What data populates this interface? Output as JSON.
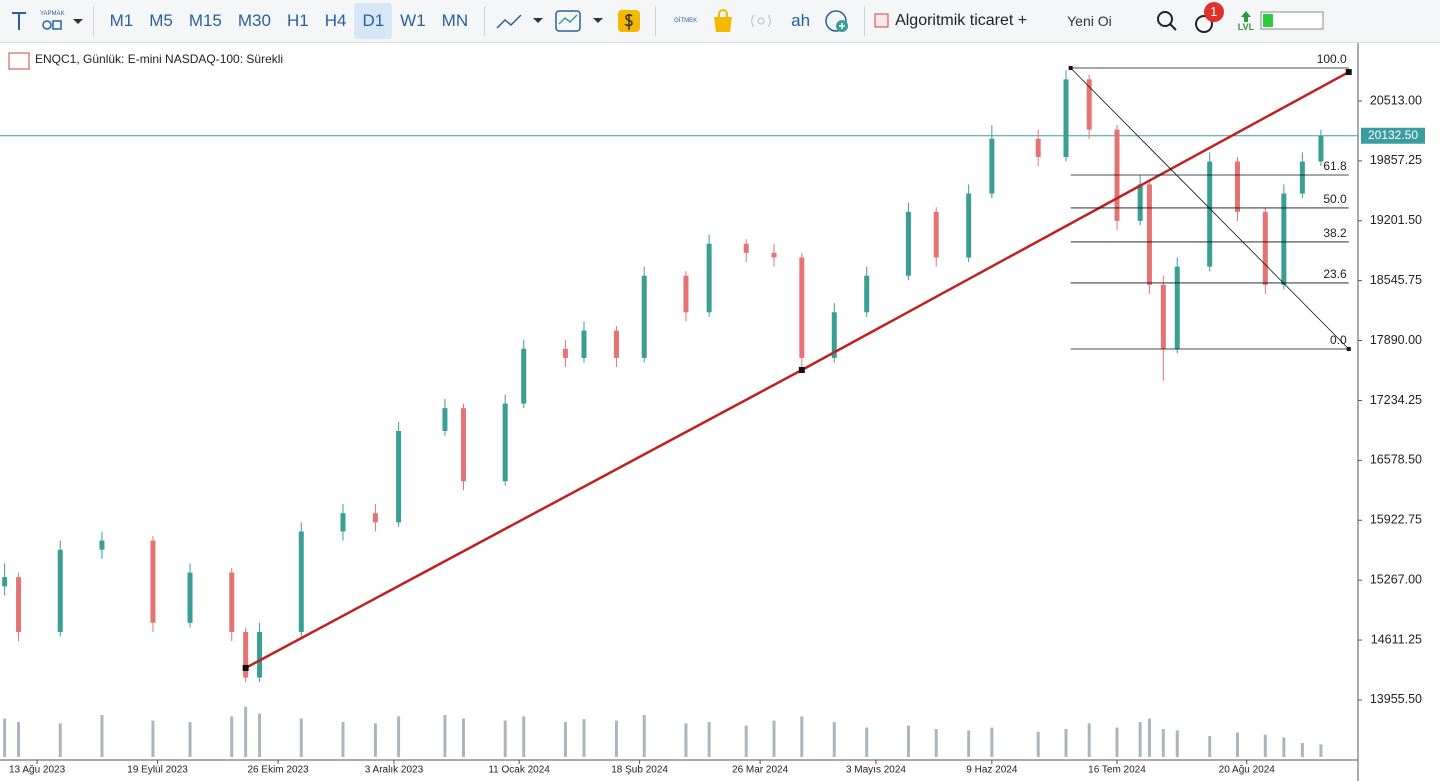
{
  "toolbar": {
    "draw_label": "YAPMAK",
    "timeframes": [
      "M1",
      "M5",
      "M15",
      "M30",
      "H1",
      "H4",
      "D1",
      "W1",
      "MN"
    ],
    "active_timeframe": "D1",
    "go_label": "GİTMEK",
    "ah": "ah",
    "algo_trading": "Algoritmik ticaret +",
    "new_order": "Yeni Oi",
    "badge": "1",
    "lvl": "LVL"
  },
  "chart_data": {
    "type": "candlestick",
    "title": "ENQC1, Günlük: E-mini NASDAQ-100: Sürekli",
    "up_color": "#3a9e94",
    "down_color": "#e57373",
    "ylim": [
      13298,
      21126
    ],
    "yticks": [
      {
        "value": 20513,
        "label": "20513.00"
      },
      {
        "value": 19857.25,
        "label": "19857.25"
      },
      {
        "value": 19201.5,
        "label": "19201.50"
      },
      {
        "value": 18545.75,
        "label": "18545.75"
      },
      {
        "value": 17890,
        "label": "17890.00"
      },
      {
        "value": 17234.25,
        "label": "17234.25"
      },
      {
        "value": 16578.5,
        "label": "16578.50"
      },
      {
        "value": 15922.75,
        "label": "15922.75"
      },
      {
        "value": 15267,
        "label": "15267.00"
      },
      {
        "value": 14611.25,
        "label": "14611.25"
      },
      {
        "value": 13955.5,
        "label": "13955.50"
      }
    ],
    "xlim": [
      -1,
      292
    ],
    "xticks": [
      {
        "value": 7,
        "label": "13 Ağu 2023"
      },
      {
        "value": 33,
        "label": "19 Eylül 2023"
      },
      {
        "value": 59,
        "label": "26 Ekim 2023"
      },
      {
        "value": 84,
        "label": "3 Aralık 2023"
      },
      {
        "value": 111,
        "label": "11 Ocak 2024"
      },
      {
        "value": 137,
        "label": "18 Şub 2024"
      },
      {
        "value": 163,
        "label": "26 Mar 2024"
      },
      {
        "value": 188,
        "label": "3 Mayıs 2024"
      },
      {
        "value": 213,
        "label": "9 Haz 2024"
      },
      {
        "value": 240,
        "label": "16 Tem 2024"
      },
      {
        "value": 268,
        "label": "20 Ağu 2024"
      }
    ],
    "x": [
      0,
      3,
      12,
      21,
      32,
      40,
      49,
      52,
      55,
      64,
      73,
      80,
      85,
      95,
      99,
      108,
      112,
      121,
      125,
      132,
      138,
      147,
      152,
      160,
      166,
      172,
      179,
      186,
      195,
      201,
      208,
      213,
      223,
      229,
      234,
      240,
      245,
      247,
      250,
      253,
      260,
      266,
      272,
      276,
      280,
      284
    ],
    "open": [
      15200,
      15300,
      14700,
      15600,
      15700,
      14800,
      15350,
      14700,
      14200,
      14700,
      15800,
      16000,
      15900,
      16900,
      17150,
      16350,
      17200,
      17800,
      17700,
      18000,
      17700,
      18600,
      18200,
      18950,
      18850,
      18800,
      17700,
      18200,
      18600,
      19300,
      18800,
      19500,
      20100,
      19900,
      20750,
      20200,
      19200,
      19600,
      18500,
      17800,
      18700,
      19850,
      19300,
      18500,
      19500,
      19850
    ],
    "high": [
      15450,
      15350,
      15700,
      15800,
      15750,
      15450,
      15400,
      14750,
      14800,
      15900,
      16100,
      16100,
      17000,
      17250,
      17200,
      17300,
      17900,
      17900,
      18100,
      18050,
      18700,
      18650,
      19050,
      19000,
      18950,
      18850,
      18300,
      18700,
      19400,
      19350,
      19600,
      20250,
      20200,
      20850,
      20800,
      20250,
      19700,
      19650,
      18600,
      18800,
      19950,
      19900,
      19350,
      19600,
      19950,
      20200
    ],
    "low": [
      15100,
      14600,
      14650,
      15500,
      14700,
      14750,
      14600,
      14150,
      14150,
      14650,
      15700,
      15800,
      15850,
      16850,
      16250,
      16300,
      17150,
      17600,
      17650,
      17600,
      17650,
      18100,
      18150,
      18750,
      18700,
      17550,
      17650,
      18150,
      18550,
      18700,
      18750,
      19450,
      19800,
      19850,
      20100,
      19100,
      19150,
      18400,
      17450,
      17750,
      18650,
      19200,
      18400,
      18450,
      19450,
      19800
    ],
    "close": [
      15300,
      14700,
      15600,
      15700,
      14800,
      15350,
      14700,
      14200,
      14700,
      15800,
      16000,
      15900,
      16900,
      17150,
      16350,
      17200,
      17800,
      17700,
      18000,
      17700,
      18600,
      18200,
      18950,
      18850,
      18800,
      17700,
      18200,
      18600,
      19300,
      18800,
      19500,
      20100,
      19900,
      20750,
      20200,
      19200,
      19600,
      18500,
      17800,
      18700,
      19850,
      19300,
      18500,
      19500,
      19850,
      20132.5
    ],
    "volume": [
      55,
      50,
      48,
      60,
      52,
      50,
      58,
      72,
      62,
      55,
      50,
      48,
      58,
      60,
      55,
      52,
      58,
      50,
      54,
      52,
      60,
      48,
      50,
      45,
      52,
      58,
      50,
      42,
      45,
      40,
      38,
      42,
      36,
      40,
      48,
      42,
      50,
      55,
      40,
      38,
      30,
      35,
      32,
      28,
      20,
      18
    ],
    "volume_lim": [
      0,
      100
    ],
    "trendline": {
      "color": "#c0201f",
      "x": [
        52,
        172,
        290
      ],
      "y": [
        14306,
        17568,
        20830
      ]
    },
    "price_line": {
      "value": 20132.5,
      "label": "20132.50",
      "color": "#3a9ea0"
    },
    "fibonacci": {
      "x": [
        230,
        290
      ],
      "levels": [
        {
          "label": "100.0",
          "price": 20874
        },
        {
          "label": "61.8",
          "price": 19703
        },
        {
          "label": "50.0",
          "price": 19342
        },
        {
          "label": "38.2",
          "price": 18970
        },
        {
          "label": "23.6",
          "price": 18521
        },
        {
          "label": "0.0",
          "price": 17798
        }
      ]
    }
  }
}
